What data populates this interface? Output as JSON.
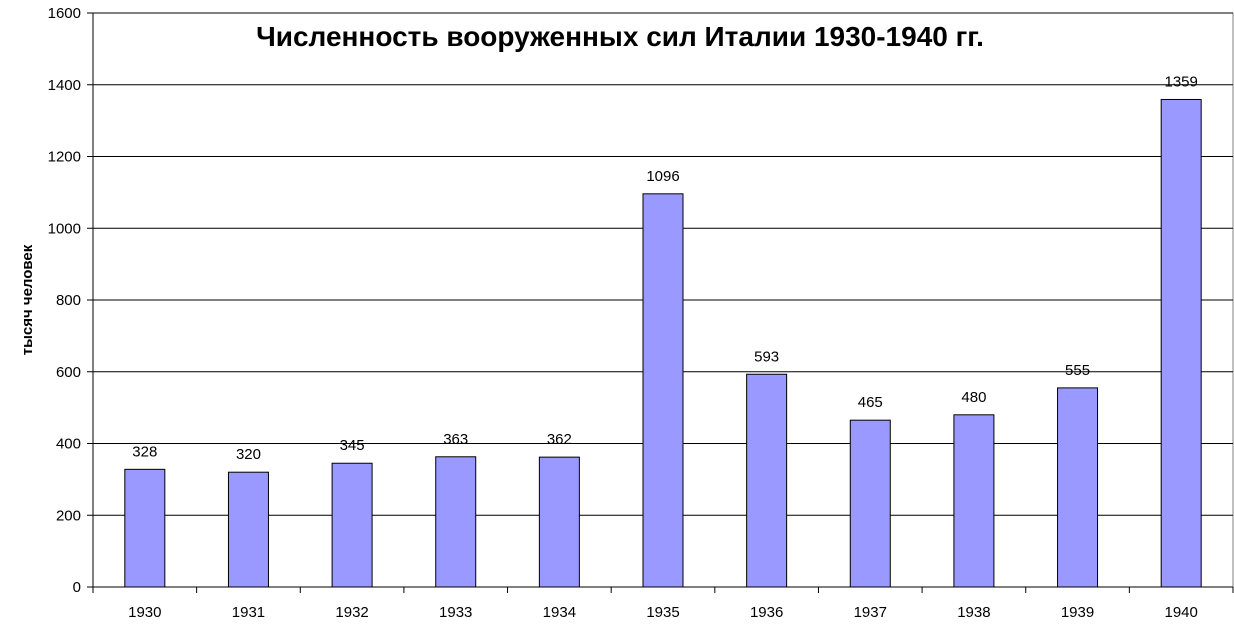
{
  "chart_data": {
    "type": "bar",
    "title": "Численность вооруженных сил Италии 1930-1940 гг.",
    "xlabel": "",
    "ylabel": "тысяч человек",
    "categories": [
      "1930",
      "1931",
      "1932",
      "1933",
      "1934",
      "1935",
      "1936",
      "1937",
      "1938",
      "1939",
      "1940"
    ],
    "values": [
      328,
      320,
      345,
      363,
      362,
      1096,
      593,
      465,
      480,
      555,
      1359
    ],
    "data_labels": [
      "328",
      "320",
      "345",
      "363",
      "362",
      "1096",
      "593",
      "465",
      "480",
      "555",
      "1359"
    ],
    "ylim": [
      0,
      1600
    ],
    "yticks": [
      0,
      200,
      400,
      600,
      800,
      1000,
      1200,
      1400,
      1600
    ],
    "ytick_labels": [
      "0",
      "200",
      "400",
      "600",
      "800",
      "1000",
      "1200",
      "1400",
      "1600"
    ],
    "grid": true,
    "legend": "none",
    "colors": {
      "bar_fill": "#9999ff",
      "bar_stroke": "#000000",
      "grid": "#000000",
      "axis": "#000000",
      "background": "#ffffff"
    }
  }
}
